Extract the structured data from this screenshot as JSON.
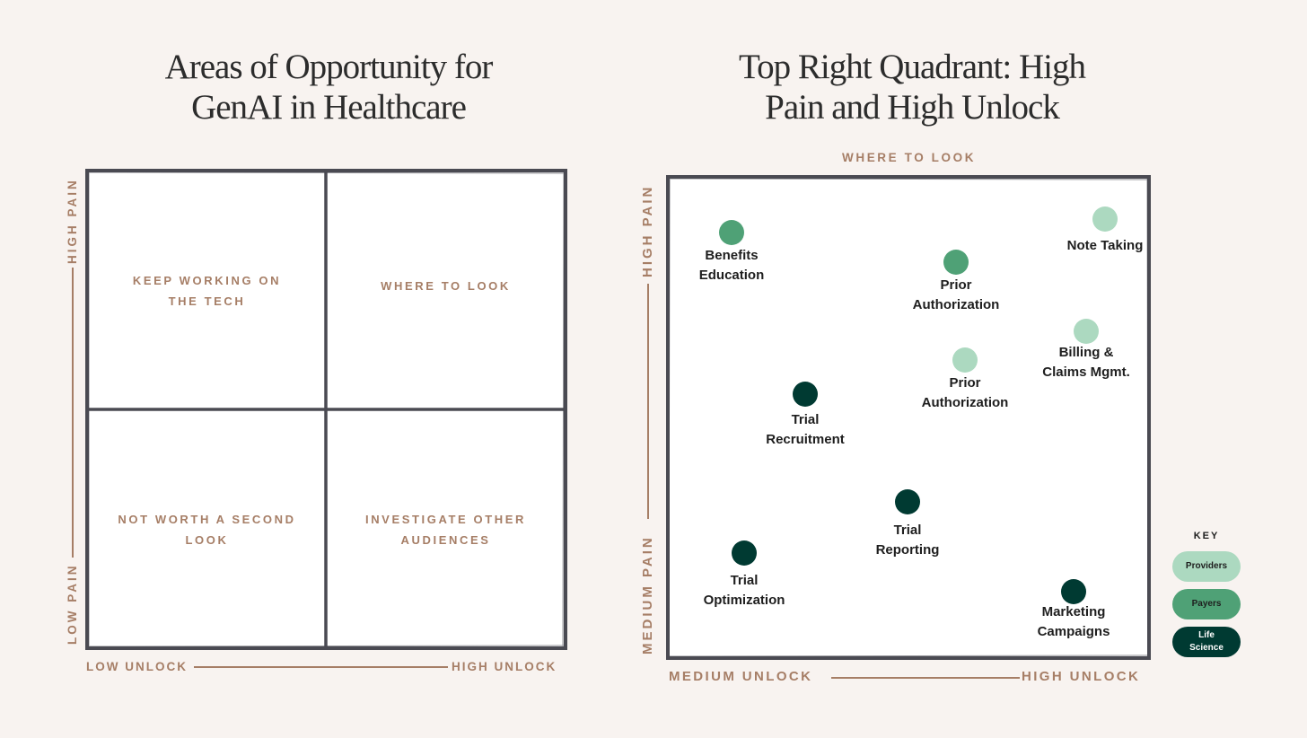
{
  "left_panel": {
    "title_lines": [
      "Areas of Opportunity for",
      "GenAI in Healthcare"
    ],
    "y_axis": {
      "top_label": "HIGH PAIN",
      "bottom_label": "LOW PAIN"
    },
    "x_axis": {
      "left_label": "LOW UNLOCK",
      "right_label": "HIGH UNLOCK"
    },
    "quadrants": {
      "top_left": [
        "KEEP WORKING ON",
        "THE TECH"
      ],
      "top_right": [
        "WHERE TO LOOK"
      ],
      "bottom_left": [
        "NOT WORTH A SECOND",
        "LOOK"
      ],
      "bottom_right": [
        "INVESTIGATE OTHER",
        "AUDIENCES"
      ]
    }
  },
  "right_panel": {
    "title_lines": [
      "Top Right Quadrant: High",
      "Pain and High Unlock"
    ],
    "top_label": "WHERE TO LOOK",
    "y_axis": {
      "top_label": "HIGH PAIN",
      "bottom_label": "MEDIUM PAIN"
    },
    "x_axis": {
      "left_label": "MEDIUM UNLOCK",
      "right_label": "HIGH UNLOCK"
    },
    "points": [
      {
        "lines": [
          "Benefits",
          "Education"
        ],
        "category": "Payers"
      },
      {
        "lines": [
          "Prior",
          "Authorization"
        ],
        "category": "Payers"
      },
      {
        "lines": [
          "Note Taking"
        ],
        "category": "Providers"
      },
      {
        "lines": [
          "Billing &",
          "Claims Mgmt."
        ],
        "category": "Providers"
      },
      {
        "lines": [
          "Prior",
          "Authorization"
        ],
        "category": "Providers"
      },
      {
        "lines": [
          "Trial",
          "Recruitment"
        ],
        "category": "Life Science"
      },
      {
        "lines": [
          "Trial",
          "Reporting"
        ],
        "category": "Life Science"
      },
      {
        "lines": [
          "Trial",
          "Optimization"
        ],
        "category": "Life Science"
      },
      {
        "lines": [
          "Marketing",
          "Campaigns"
        ],
        "category": "Life Science"
      }
    ],
    "key": {
      "title": "KEY",
      "items": [
        {
          "lines": [
            "Providers"
          ],
          "color": "#acd9c0",
          "text_color": "#1e1e1e"
        },
        {
          "lines": [
            "Payers"
          ],
          "color": "#4fa176",
          "text_color": "#1e1e1e"
        },
        {
          "lines": [
            "Life",
            "Science"
          ],
          "color": "#003a32",
          "text_color": "#ffffff"
        }
      ]
    }
  }
}
